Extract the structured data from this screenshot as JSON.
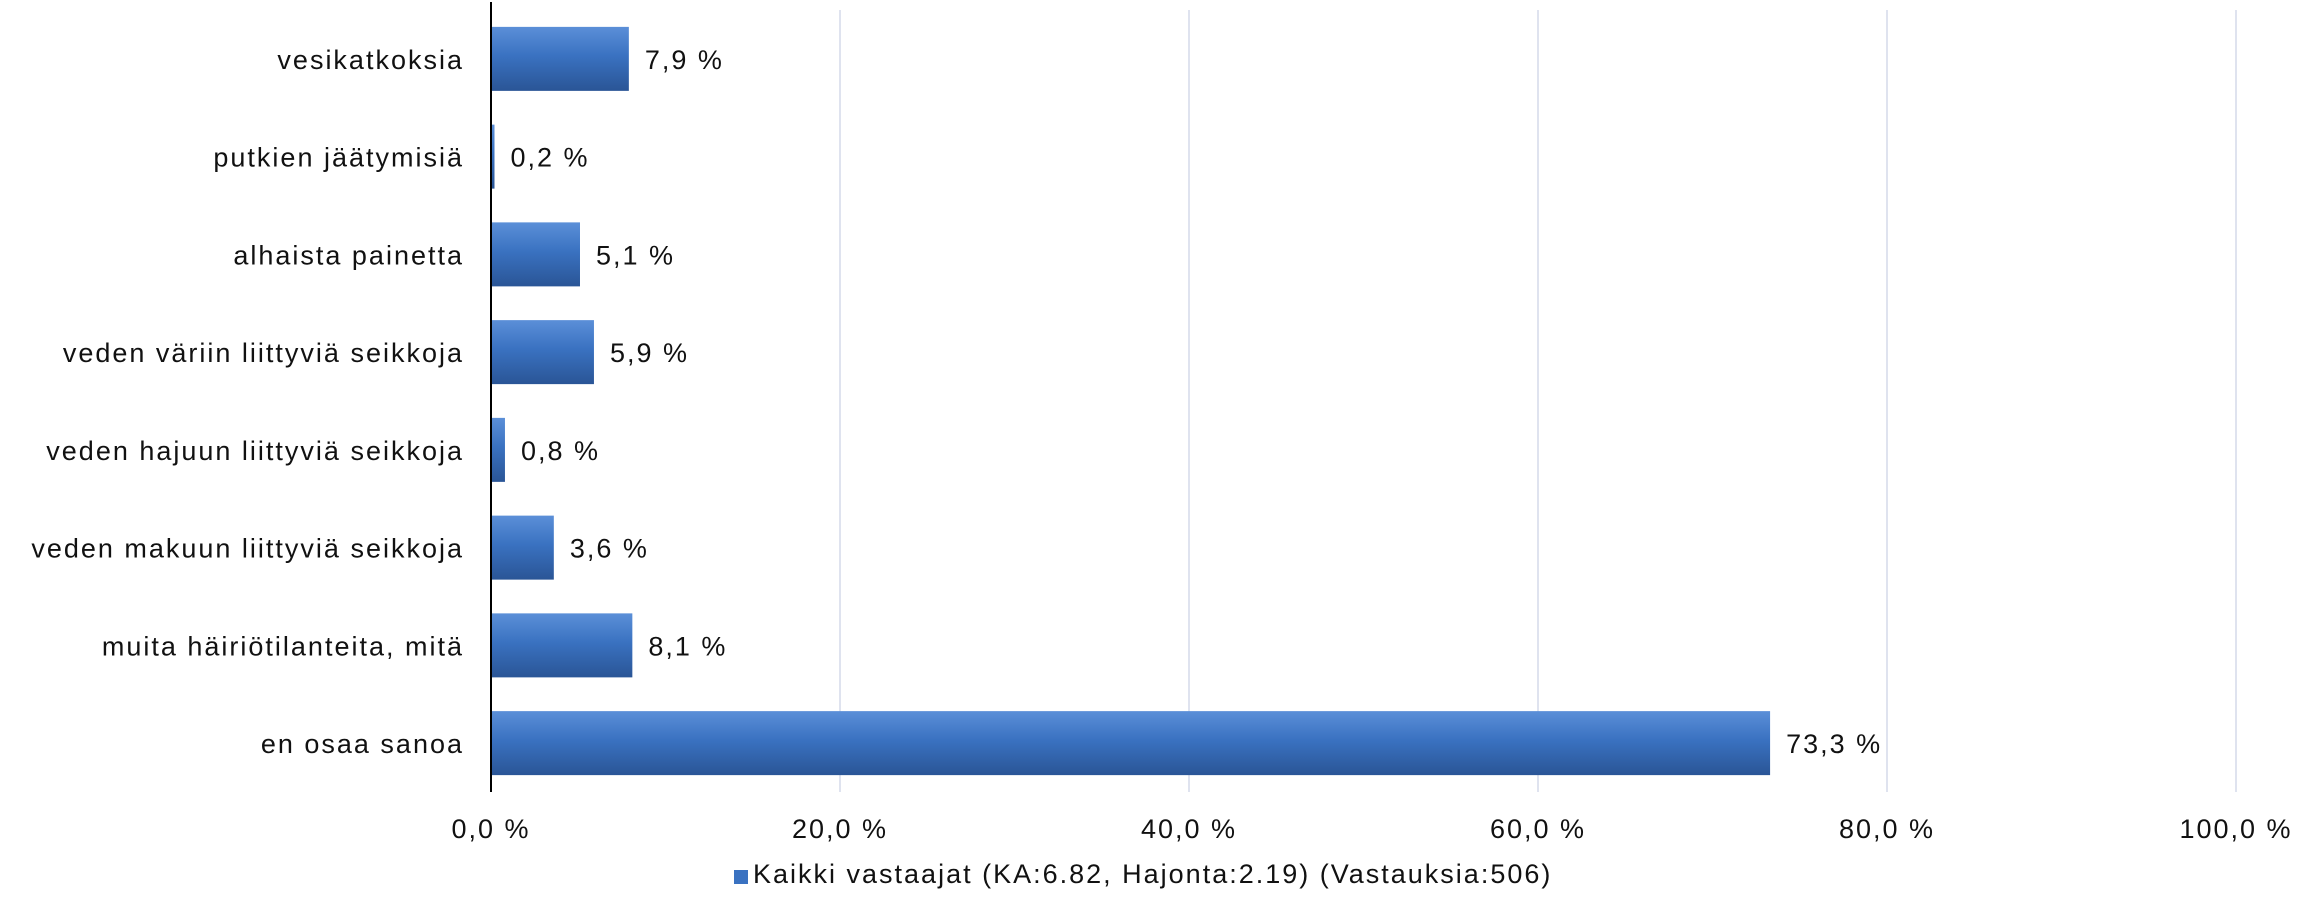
{
  "chart_data": {
    "type": "bar",
    "orientation": "horizontal",
    "categories": [
      "vesikatkoksia",
      "putkien jäätymisiä",
      "alhaista painetta",
      "veden väriin liittyviä seikkoja",
      "veden hajuun liittyviä seikkoja",
      "veden makuun liittyviä seikkoja",
      "muita häiriötilanteita, mitä",
      "en osaa sanoa"
    ],
    "series": [
      {
        "name": "Kaikki vastaajat (KA:6.82, Hajonta:2.19) (Vastauksia:506)",
        "values": [
          7.9,
          0.2,
          5.1,
          5.9,
          0.8,
          3.6,
          8.1,
          73.3
        ],
        "value_labels": [
          "7,9 %",
          "0,2 %",
          "5,1 %",
          "5,9 %",
          "0,8 %",
          "3,6 %",
          "8,1 %",
          "73,3 %"
        ],
        "color": "#3a72c1"
      }
    ],
    "x_ticks": [
      0,
      20,
      40,
      60,
      80,
      100
    ],
    "x_tick_labels": [
      "0,0 %",
      "20,0 %",
      "40,0 %",
      "60,0 %",
      "80,0 %",
      "100,0 %"
    ],
    "xlim": [
      0,
      100
    ],
    "grid": true,
    "legend_position": "bottom",
    "title": "",
    "xlabel": "",
    "ylabel": ""
  },
  "colors": {
    "bar": "#3a72c1",
    "bar_dark": "#2a5596",
    "bar_light": "#5b8fd8",
    "grid": "#dfe3ef",
    "axis": "#000000"
  }
}
